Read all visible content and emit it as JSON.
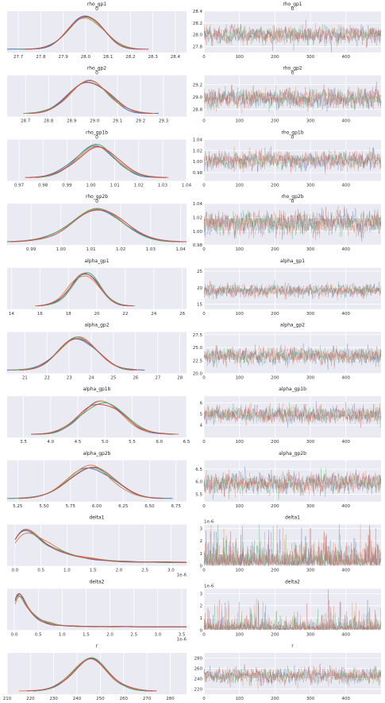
{
  "chart_data": {
    "type": "line",
    "figure": "trace plot",
    "chains": 4,
    "draws": 500,
    "chain_colors": [
      "#4c72b0",
      "#dd8452",
      "#55a868",
      "#c44e52"
    ],
    "background": "#eaeaf2",
    "grid": true,
    "rows": [
      {
        "name": "rho_gp1",
        "index": "0",
        "mean": 28.0,
        "sd": 0.1,
        "kde_xlim": [
          27.65,
          28.45
        ],
        "kde_xticks": [
          27.7,
          27.8,
          27.9,
          28.0,
          28.1,
          28.2,
          28.3,
          28.4
        ],
        "trace_ylim": [
          27.7,
          28.4
        ],
        "trace_yticks": [
          27.8,
          28.0,
          28.2,
          28.4
        ]
      },
      {
        "name": "rho_gp2",
        "index": "0",
        "mean": 28.98,
        "sd": 0.11,
        "kde_xlim": [
          28.62,
          29.4
        ],
        "kde_xticks": [
          28.7,
          28.8,
          28.9,
          29.0,
          29.1,
          29.2,
          29.3
        ],
        "trace_ylim": [
          28.68,
          29.35
        ],
        "trace_yticks": [
          28.8,
          29.0,
          29.2
        ]
      },
      {
        "name": "rho_gp1b",
        "index": "0",
        "mean": 1.002,
        "sd": 0.011,
        "kde_xlim": [
          0.965,
          1.04
        ],
        "kde_xticks": [
          0.97,
          0.98,
          0.99,
          1.0,
          1.01,
          1.02,
          1.03,
          1.04
        ],
        "trace_ylim": [
          0.965,
          1.04
        ],
        "trace_yticks": [
          0.98,
          1.0,
          1.02,
          1.04
        ]
      },
      {
        "name": "rho_gp2b",
        "index": "0",
        "mean": 1.012,
        "sd": 0.011,
        "kde_xlim": [
          0.982,
          1.042
        ],
        "kde_xticks": [
          0.99,
          1.0,
          1.01,
          1.02,
          1.03,
          1.04
        ],
        "trace_ylim": [
          0.98,
          1.04
        ],
        "trace_yticks": [
          0.98,
          1.0,
          1.02,
          1.04
        ]
      },
      {
        "name": "alpha_gp1",
        "index": "",
        "mean": 19.2,
        "sd": 1.3,
        "kde_xlim": [
          13.7,
          26.3
        ],
        "kde_xticks": [
          14,
          16,
          18,
          20,
          22,
          24,
          26
        ],
        "trace_ylim": [
          13.5,
          26.0
        ],
        "trace_yticks": [
          15,
          20,
          25
        ]
      },
      {
        "name": "alpha_gp2",
        "index": "",
        "mean": 23.4,
        "sd": 1.1,
        "kde_xlim": [
          20.2,
          28.3
        ],
        "kde_xticks": [
          21,
          22,
          23,
          24,
          25,
          26,
          27,
          28
        ],
        "trace_ylim": [
          20.0,
          28.0
        ],
        "trace_yticks": [
          20.0,
          22.5,
          25.0,
          27.5
        ]
      },
      {
        "name": "alpha_gp1b",
        "index": "",
        "mean": 4.95,
        "sd": 0.5,
        "kde_xlim": [
          3.2,
          6.5
        ],
        "kde_xticks": [
          3.5,
          4.0,
          4.5,
          5.0,
          5.5,
          6.0,
          6.5
        ],
        "trace_ylim": [
          2.9,
          6.6
        ],
        "trace_yticks": [
          4,
          5,
          6
        ]
      },
      {
        "name": "alpha_gp2b",
        "index": "",
        "mean": 5.95,
        "sd": 0.28,
        "kde_xlim": [
          5.15,
          6.85
        ],
        "kde_xticks": [
          5.25,
          5.5,
          5.75,
          6.0,
          6.25,
          6.5,
          6.75
        ],
        "trace_ylim": [
          5.2,
          6.85
        ],
        "trace_yticks": [
          5.5,
          6.0,
          6.5
        ]
      },
      {
        "name": "delta1",
        "index": "",
        "scale_label": "1e-6",
        "mean": 0.5,
        "sd": 0.8,
        "kde_xlim": [
          -0.15,
          3.3
        ],
        "kde_xticks": [
          0.0,
          0.5,
          1.0,
          1.5,
          2.0,
          2.5,
          3.0
        ],
        "trace_ylim": [
          0,
          3.3
        ],
        "trace_yticks": [
          0,
          1,
          2,
          3
        ],
        "trace_ylabel_offset": "1e-6"
      },
      {
        "name": "delta2",
        "index": "",
        "scale_label": "1e-6",
        "mean": 0.2,
        "sd": 0.6,
        "kde_xlim": [
          -0.15,
          3.6
        ],
        "kde_xticks": [
          0.0,
          0.5,
          1.0,
          1.5,
          2.0,
          2.5,
          3.0,
          3.5
        ],
        "trace_ylim": [
          0,
          3.4
        ],
        "trace_yticks": [
          0,
          1,
          2,
          3
        ],
        "trace_ylabel_offset": "1e-6"
      },
      {
        "name": "r",
        "index": "",
        "mean": 246,
        "sd": 10,
        "kde_xlim": [
          210,
          287
        ],
        "kde_xticks": [
          210,
          220,
          230,
          240,
          250,
          260,
          270,
          280
        ],
        "trace_ylim": [
          210,
          290
        ],
        "trace_yticks": [
          220,
          240,
          260,
          280
        ]
      }
    ],
    "trace_xlim": [
      0,
      499
    ],
    "trace_xticks": [
      0,
      100,
      200,
      300,
      400
    ]
  }
}
